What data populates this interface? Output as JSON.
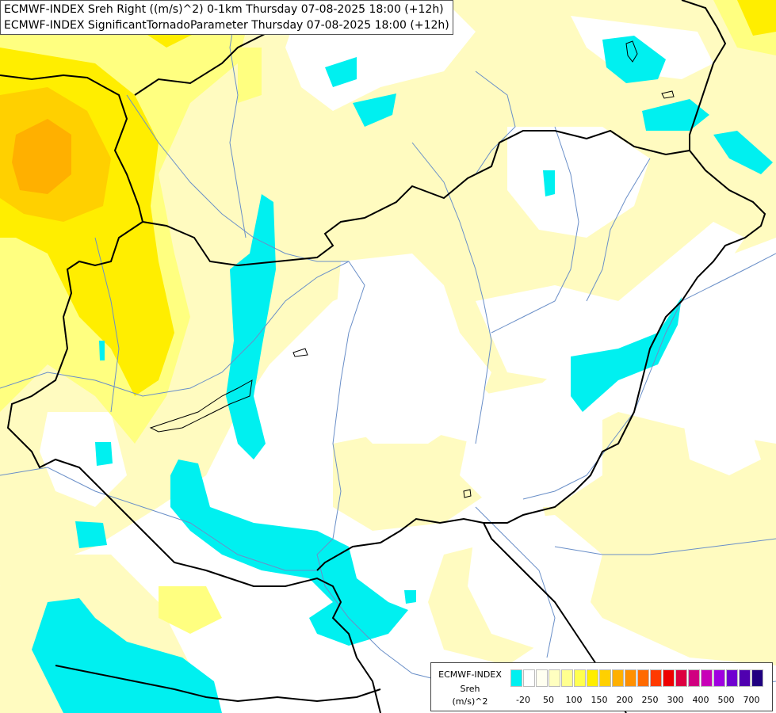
{
  "title": {
    "line1": "ECMWF-INDEX Sreh Right ((m/s)^2) 0-1km Thursday 07-08-2025 18:00 (+12h)",
    "line2": "ECMWF-INDEX SignificantTornadoParameter Thursday 07-08-2025 18:00 (+12h)"
  },
  "legend": {
    "source": "ECMWF-INDEX",
    "name": "Sreh",
    "unit": "(m/s)^2",
    "colors": [
      "#00f0f0",
      "#ffffff",
      "#fffff0",
      "#ffffc0",
      "#ffff90",
      "#ffff50",
      "#ffee00",
      "#ffd000",
      "#ffb000",
      "#ff9000",
      "#ff6a00",
      "#ff3a00",
      "#ee0000",
      "#dd0040",
      "#d00080",
      "#c800b8",
      "#a000e0",
      "#7000d0",
      "#5000b0",
      "#200080"
    ],
    "ticks": [
      "-20",
      "50",
      "100",
      "150",
      "200",
      "250",
      "300",
      "400",
      "500",
      "700"
    ]
  },
  "colors": {
    "cyan": "#00f0f0",
    "pale_yellow": "#fffbc0",
    "light_yellow": "#ffff80",
    "yellow": "#ffee00",
    "gold": "#ffd000",
    "orange": "#ffb000",
    "border": "#000000",
    "river": "#6a8fc8"
  }
}
